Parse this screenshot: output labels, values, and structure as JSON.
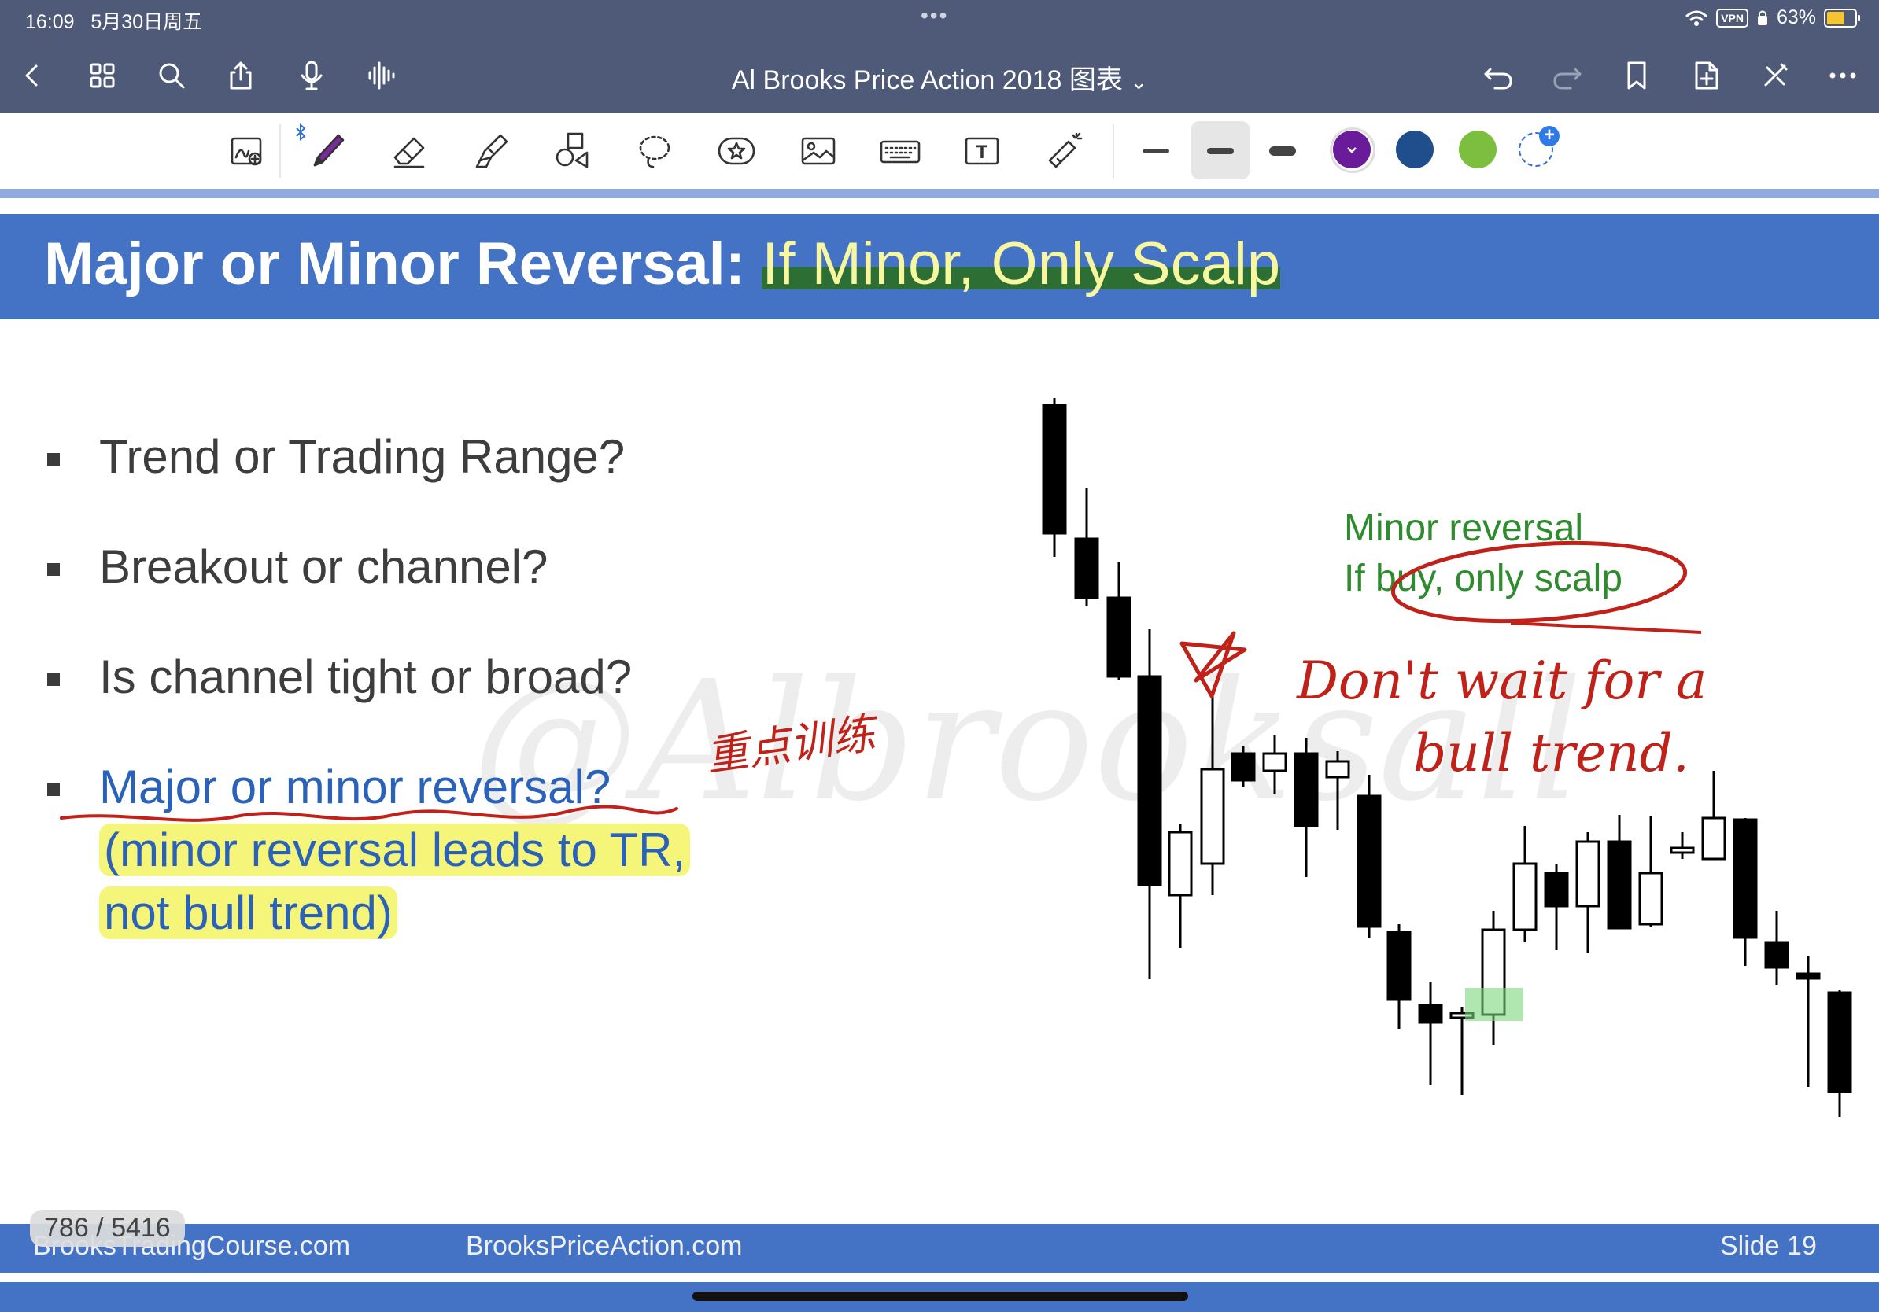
{
  "status_bar": {
    "time": "16:09",
    "date": "5月30日周五",
    "multitask_dots": "•••",
    "vpn": "VPN",
    "battery": "63%"
  },
  "nav": {
    "title": "Al Brooks Price Action 2018 图表",
    "title_chevron": "⌄",
    "left_icons": [
      "back-icon",
      "grid-icon",
      "search-icon",
      "share-icon",
      "microphone-icon",
      "audio-wave-icon"
    ],
    "right_icons": [
      "undo-icon",
      "redo-icon",
      "bookmark-icon",
      "add-page-icon",
      "close-toolbar-icon",
      "more-icon"
    ]
  },
  "toolbar": {
    "tools": [
      "zoom-writing-tool",
      "pen-tool",
      "eraser-tool",
      "highlighter-tool",
      "shapes-tool",
      "lasso-tool",
      "sticker-tool",
      "image-tool",
      "keyboard-tool",
      "text-tool",
      "laser-pointer-tool"
    ],
    "selected_tool": "pen-tool",
    "stroke_widths": [
      "thin",
      "medium",
      "thick"
    ],
    "selected_stroke": "medium",
    "colors": [
      "#6a1b9a",
      "#1f4e8c",
      "#7cbf3e"
    ],
    "selected_color": "#6a1b9a",
    "text_tool_label": "T"
  },
  "slide": {
    "title_main": "Major or Minor Reversal: ",
    "title_highlight": "If Minor, Only Scalp",
    "bullets": [
      "Trend or Trading Range?",
      "Breakout or channel?",
      "Is channel tight or broad?",
      "Major or minor reversal?"
    ],
    "sub_line1": "(minor reversal leads to TR,",
    "sub_line2": "not bull trend)",
    "chart_note_line1": "Minor reversal",
    "chart_note_line2": "If buy, only scalp",
    "watermark": "@Albrooksall",
    "handwritten_cn": "重点训练",
    "handwritten_en_line1": "Don't wait for a",
    "handwritten_en_line2": "bull trend.",
    "footer_left": "BrooksTradingCourse.com",
    "footer_mid": "BrooksPriceAction.com",
    "footer_right": "Slide  19"
  },
  "page_counter": "786 / 5416"
}
